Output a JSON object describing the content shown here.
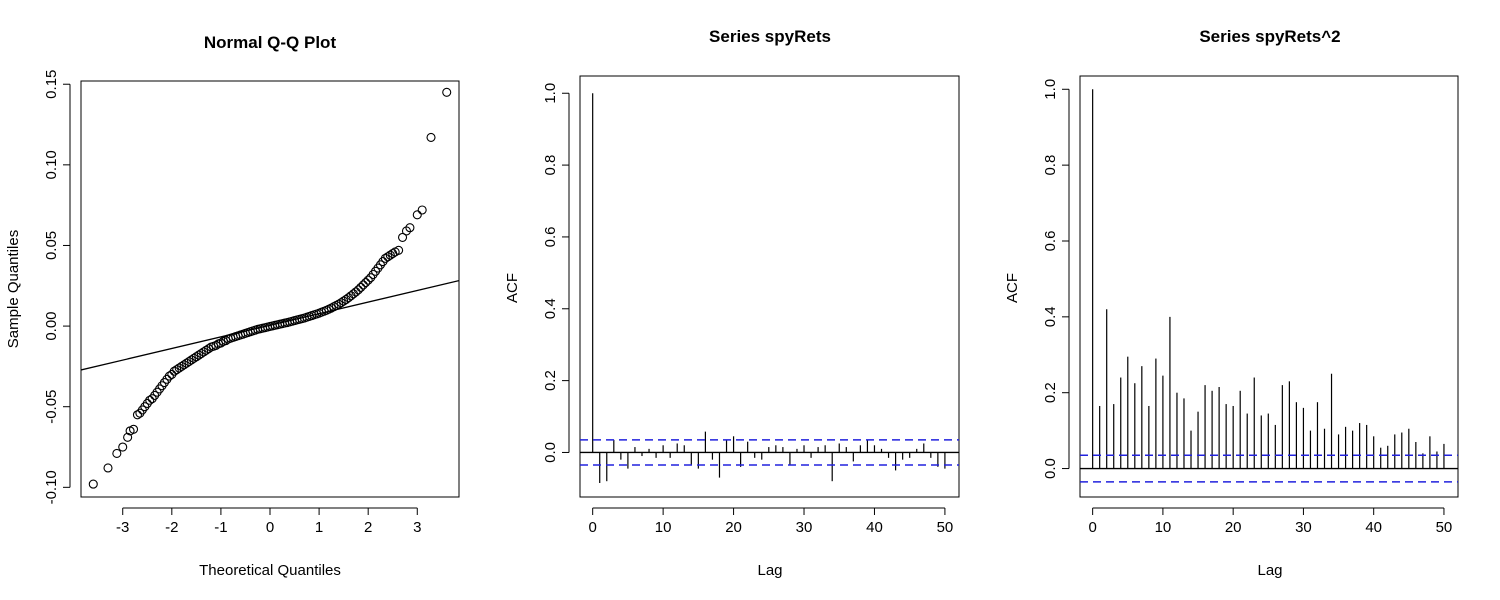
{
  "chart_data": [
    {
      "type": "scatter",
      "title": "Normal Q-Q Plot",
      "xlabel": "Theoretical Quantiles",
      "ylabel": "Sample Quantiles",
      "xlim": [
        -3.85,
        3.85
      ],
      "ylim": [
        -0.106,
        0.152
      ],
      "x_ticks": [
        -3,
        -2,
        -1,
        0,
        1,
        2,
        3
      ],
      "y_ticks": [
        -0.1,
        -0.05,
        0.0,
        0.05,
        0.1,
        0.15
      ],
      "y_tick_labels": [
        "-0.10",
        "-0.05",
        "0.00",
        "0.05",
        "0.10",
        "0.15"
      ],
      "reference_line": {
        "intercept": 0.0005,
        "slope": 0.0072
      },
      "points": [
        [
          -3.6,
          -0.098
        ],
        [
          -3.3,
          -0.088
        ],
        [
          -3.12,
          -0.079
        ],
        [
          -3.0,
          -0.075
        ],
        [
          -2.9,
          -0.069
        ],
        [
          -2.85,
          -0.065
        ],
        [
          -2.78,
          -0.064
        ],
        [
          -2.7,
          -0.055
        ],
        [
          -2.65,
          -0.054
        ],
        [
          -2.6,
          -0.052
        ],
        [
          -2.55,
          -0.05
        ],
        [
          -2.5,
          -0.048
        ],
        [
          -2.45,
          -0.046
        ],
        [
          -2.4,
          -0.045
        ],
        [
          -2.35,
          -0.043
        ],
        [
          -2.3,
          -0.041
        ],
        [
          -2.25,
          -0.039
        ],
        [
          -2.2,
          -0.037
        ],
        [
          -2.15,
          -0.035
        ],
        [
          -2.1,
          -0.033
        ],
        [
          -2.05,
          -0.031
        ],
        [
          -2.0,
          -0.03
        ],
        [
          -1.95,
          -0.028
        ],
        [
          -1.9,
          -0.027
        ],
        [
          -1.85,
          -0.026
        ],
        [
          -1.8,
          -0.025
        ],
        [
          -1.75,
          -0.024
        ],
        [
          -1.7,
          -0.023
        ],
        [
          -1.65,
          -0.022
        ],
        [
          -1.6,
          -0.021
        ],
        [
          -1.55,
          -0.02
        ],
        [
          -1.5,
          -0.019
        ],
        [
          -1.45,
          -0.018
        ],
        [
          -1.4,
          -0.017
        ],
        [
          -1.35,
          -0.016
        ],
        [
          -1.3,
          -0.015
        ],
        [
          -1.25,
          -0.014
        ],
        [
          -1.2,
          -0.013
        ],
        [
          -1.15,
          -0.0125
        ],
        [
          -1.1,
          -0.012
        ],
        [
          -1.05,
          -0.011
        ],
        [
          -1.0,
          -0.0105
        ],
        [
          -0.95,
          -0.0095
        ],
        [
          -0.9,
          -0.009
        ],
        [
          -0.85,
          -0.008
        ],
        [
          -0.8,
          -0.0075
        ],
        [
          -0.75,
          -0.007
        ],
        [
          -0.7,
          -0.0065
        ],
        [
          -0.65,
          -0.006
        ],
        [
          -0.6,
          -0.0055
        ],
        [
          -0.55,
          -0.005
        ],
        [
          -0.5,
          -0.0045
        ],
        [
          -0.45,
          -0.004
        ],
        [
          -0.4,
          -0.0035
        ],
        [
          -0.35,
          -0.003
        ],
        [
          -0.3,
          -0.0025
        ],
        [
          -0.25,
          -0.002
        ],
        [
          -0.2,
          -0.0017
        ],
        [
          -0.15,
          -0.0013
        ],
        [
          -0.1,
          -0.001
        ],
        [
          -0.05,
          -0.0006
        ],
        [
          0.0,
          -0.0002
        ],
        [
          0.05,
          0.0001
        ],
        [
          0.1,
          0.0005
        ],
        [
          0.15,
          0.0008
        ],
        [
          0.2,
          0.0012
        ],
        [
          0.25,
          0.0015
        ],
        [
          0.3,
          0.0019
        ],
        [
          0.35,
          0.0022
        ],
        [
          0.4,
          0.0026
        ],
        [
          0.45,
          0.003
        ],
        [
          0.5,
          0.0034
        ],
        [
          0.55,
          0.0038
        ],
        [
          0.6,
          0.0042
        ],
        [
          0.65,
          0.0046
        ],
        [
          0.7,
          0.005
        ],
        [
          0.75,
          0.0055
        ],
        [
          0.8,
          0.006
        ],
        [
          0.85,
          0.0065
        ],
        [
          0.9,
          0.007
        ],
        [
          0.95,
          0.0075
        ],
        [
          1.0,
          0.008
        ],
        [
          1.05,
          0.0086
        ],
        [
          1.1,
          0.0092
        ],
        [
          1.15,
          0.0098
        ],
        [
          1.2,
          0.0105
        ],
        [
          1.25,
          0.0112
        ],
        [
          1.3,
          0.012
        ],
        [
          1.35,
          0.0128
        ],
        [
          1.4,
          0.0136
        ],
        [
          1.45,
          0.0145
        ],
        [
          1.5,
          0.0155
        ],
        [
          1.55,
          0.0165
        ],
        [
          1.6,
          0.0176
        ],
        [
          1.65,
          0.0188
        ],
        [
          1.7,
          0.02
        ],
        [
          1.75,
          0.0212
        ],
        [
          1.8,
          0.0225
        ],
        [
          1.85,
          0.024
        ],
        [
          1.9,
          0.0255
        ],
        [
          1.95,
          0.027
        ],
        [
          2.0,
          0.0285
        ],
        [
          2.05,
          0.03
        ],
        [
          2.1,
          0.032
        ],
        [
          2.15,
          0.034
        ],
        [
          2.2,
          0.036
        ],
        [
          2.25,
          0.038
        ],
        [
          2.3,
          0.04
        ],
        [
          2.35,
          0.042
        ],
        [
          2.4,
          0.043
        ],
        [
          2.45,
          0.044
        ],
        [
          2.5,
          0.045
        ],
        [
          2.55,
          0.046
        ],
        [
          2.62,
          0.047
        ],
        [
          2.7,
          0.055
        ],
        [
          2.78,
          0.059
        ],
        [
          2.85,
          0.061
        ],
        [
          3.0,
          0.069
        ],
        [
          3.1,
          0.072
        ],
        [
          3.28,
          0.117
        ],
        [
          3.6,
          0.145
        ]
      ]
    },
    {
      "type": "bar",
      "title": "Series  spyRets",
      "xlabel": "Lag",
      "ylabel": "ACF",
      "xlim": [
        -1.8,
        52.0
      ],
      "ylim": [
        -0.124,
        1.048
      ],
      "x_ticks": [
        0,
        10,
        20,
        30,
        40,
        50
      ],
      "y_ticks": [
        0.0,
        0.2,
        0.4,
        0.6,
        0.8,
        1.0
      ],
      "y_tick_labels": [
        "0.0",
        "0.2",
        "0.4",
        "0.6",
        "0.8",
        "1.0"
      ],
      "confidence_band": 0.035,
      "lags": [
        0,
        1,
        2,
        3,
        4,
        5,
        6,
        7,
        8,
        9,
        10,
        11,
        12,
        13,
        14,
        15,
        16,
        17,
        18,
        19,
        20,
        21,
        22,
        23,
        24,
        25,
        26,
        27,
        28,
        29,
        30,
        31,
        32,
        33,
        34,
        35,
        36,
        37,
        38,
        39,
        40,
        41,
        42,
        43,
        44,
        45,
        46,
        47,
        48,
        49,
        50
      ],
      "values": [
        1.0,
        -0.085,
        -0.08,
        0.035,
        -0.02,
        -0.045,
        0.015,
        -0.01,
        0.01,
        -0.015,
        0.02,
        -0.015,
        0.025,
        0.02,
        -0.035,
        -0.045,
        0.058,
        -0.02,
        -0.07,
        0.035,
        0.045,
        -0.04,
        0.03,
        -0.015,
        -0.02,
        0.015,
        0.02,
        0.015,
        -0.035,
        0.01,
        0.02,
        -0.015,
        0.015,
        0.02,
        -0.08,
        0.025,
        0.015,
        -0.025,
        0.02,
        0.035,
        0.02,
        0.01,
        -0.015,
        -0.05,
        -0.02,
        -0.015,
        0.01,
        0.025,
        -0.015,
        -0.04,
        -0.045
      ]
    },
    {
      "type": "bar",
      "title": "Series  spyRets^2",
      "xlabel": "Lag",
      "ylabel": "ACF",
      "xlim": [
        -1.8,
        52.0
      ],
      "ylim": [
        -0.075,
        1.035
      ],
      "x_ticks": [
        0,
        10,
        20,
        30,
        40,
        50
      ],
      "y_ticks": [
        0.0,
        0.2,
        0.4,
        0.6,
        0.8,
        1.0
      ],
      "y_tick_labels": [
        "0.0",
        "0.2",
        "0.4",
        "0.6",
        "0.8",
        "1.0"
      ],
      "confidence_band": 0.035,
      "lags": [
        0,
        1,
        2,
        3,
        4,
        5,
        6,
        7,
        8,
        9,
        10,
        11,
        12,
        13,
        14,
        15,
        16,
        17,
        18,
        19,
        20,
        21,
        22,
        23,
        24,
        25,
        26,
        27,
        28,
        29,
        30,
        31,
        32,
        33,
        34,
        35,
        36,
        37,
        38,
        39,
        40,
        41,
        42,
        43,
        44,
        45,
        46,
        47,
        48,
        49,
        50
      ],
      "values": [
        1.0,
        0.165,
        0.42,
        0.17,
        0.24,
        0.295,
        0.225,
        0.27,
        0.165,
        0.29,
        0.245,
        0.4,
        0.2,
        0.185,
        0.1,
        0.15,
        0.22,
        0.205,
        0.215,
        0.17,
        0.165,
        0.205,
        0.145,
        0.24,
        0.14,
        0.145,
        0.115,
        0.22,
        0.23,
        0.175,
        0.16,
        0.1,
        0.175,
        0.105,
        0.25,
        0.09,
        0.11,
        0.1,
        0.12,
        0.115,
        0.085,
        0.055,
        0.06,
        0.09,
        0.095,
        0.105,
        0.07,
        0.04,
        0.085,
        0.045,
        0.065
      ]
    }
  ]
}
